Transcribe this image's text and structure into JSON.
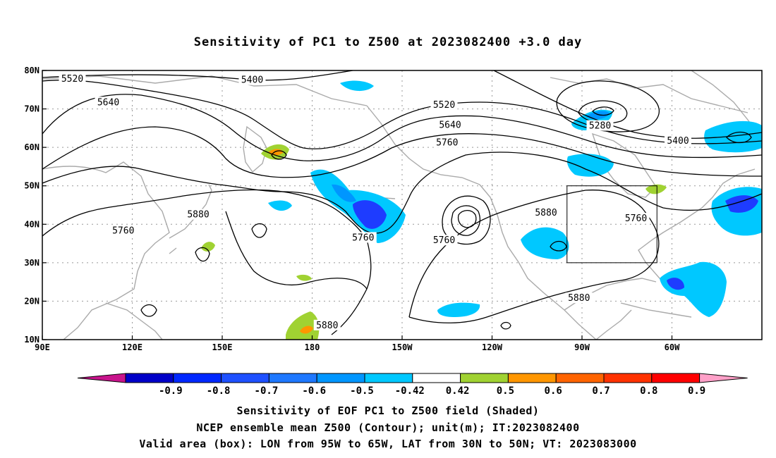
{
  "title": "Sensitivity of PC1 to Z500 at 2023082400 +3.0 day",
  "map": {
    "lat_ticks": [
      "80N",
      "70N",
      "60N",
      "50N",
      "40N",
      "30N",
      "20N",
      "10N"
    ],
    "lon_ticks": [
      "90E",
      "120E",
      "150E",
      "180",
      "150W",
      "120W",
      "90W",
      "60W"
    ],
    "contour_labels": [
      {
        "text": "5520",
        "lon": 100,
        "lat": 77.8
      },
      {
        "text": "5400",
        "lon": 160,
        "lat": 77.5
      },
      {
        "text": "5640",
        "lon": 112,
        "lat": 71.7
      },
      {
        "text": "5520",
        "lon": -136,
        "lat": 71.0
      },
      {
        "text": "5640",
        "lon": -134,
        "lat": 65.8
      },
      {
        "text": "5760",
        "lon": -135,
        "lat": 61.2
      },
      {
        "text": "5280",
        "lon": -84,
        "lat": 65.6
      },
      {
        "text": "5400",
        "lon": -58,
        "lat": 61.7
      },
      {
        "text": "5880",
        "lon": 142,
        "lat": 42.5
      },
      {
        "text": "5760",
        "lon": 117,
        "lat": 38.3
      },
      {
        "text": "5760",
        "lon": -163,
        "lat": 36.5
      },
      {
        "text": "5760",
        "lon": -136,
        "lat": 35.8
      },
      {
        "text": "5880",
        "lon": -102,
        "lat": 43.0
      },
      {
        "text": "5760",
        "lon": -72,
        "lat": 41.5
      },
      {
        "text": "5880",
        "lon": -91,
        "lat": 20.8
      },
      {
        "text": "5880",
        "lon": -175,
        "lat": 13.7
      }
    ],
    "valid_box": {
      "lon_west": -95,
      "lon_east": -65,
      "lat_south": 30,
      "lat_north": 50
    },
    "colors": {
      "land_outline": "#aaaaaa",
      "contour": "#000000",
      "neg_strong": "#1e3cff",
      "neg_medium": "#0096ff",
      "neg_weak": "#00c8ff",
      "pos_weak": "#a0d232",
      "pos_medium": "#ff9600"
    }
  },
  "colorbar": {
    "labels": [
      "-0.9",
      "-0.8",
      "-0.7",
      "-0.6",
      "-0.5",
      "-0.42",
      "0.42",
      "0.5",
      "0.6",
      "0.7",
      "0.8",
      "0.9"
    ],
    "colors": [
      "#0000c8",
      "#0028ff",
      "#1e50ff",
      "#1e78ff",
      "#0096ff",
      "#00c8ff",
      "#ffffff",
      "#a0d232",
      "#ff9600",
      "#ff6400",
      "#ff3200",
      "#ff0000"
    ],
    "left_end_color": "#c8148c",
    "right_end_color": "#ffa0c8"
  },
  "captions": {
    "line1": "Sensitivity of EOF PC1 to Z500 field (Shaded)",
    "line2": "NCEP ensemble mean Z500 (Contour); unit(m); IT:2023082400",
    "line3": "Valid area (box): LON from 95W to 65W, LAT from 30N to 50N; VT: 2023083000"
  }
}
